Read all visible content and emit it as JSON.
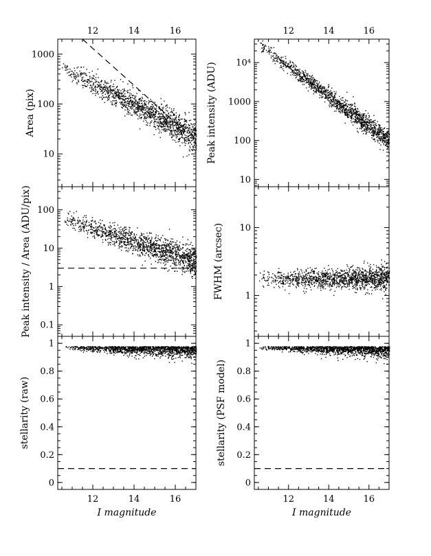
{
  "figure": {
    "top_axis_label": "",
    "colors": {
      "ink": "#000000",
      "background": "#ffffff"
    }
  },
  "chart_data": [
    {
      "id": "area",
      "type": "scatter",
      "xlabel": "",
      "ylabel": "Area (pix)",
      "xlim": [
        10.3,
        17.0
      ],
      "ylim": [
        2.2,
        2000
      ],
      "yscale": "log",
      "x_ticks": [
        "12",
        "14",
        "16"
      ],
      "x_ticks_position": "top",
      "y_ticks": [
        "10",
        "100",
        "1000"
      ],
      "trend": {
        "x_start": 10.5,
        "x_end": 17.0,
        "y_start": 560,
        "y_end": 22,
        "scatter_dex": 0.08,
        "n_points": 1400
      },
      "reference_lines": [
        {
          "style": "dashed",
          "x": [
            11.5,
            16.5
          ],
          "y": [
            2000,
            28
          ]
        }
      ]
    },
    {
      "id": "peak",
      "type": "scatter",
      "xlabel": "",
      "ylabel": "Peak intensity (ADU)",
      "xlim": [
        10.3,
        17.0
      ],
      "ylim": [
        6.5,
        40000
      ],
      "yscale": "log",
      "x_ticks": [
        "12",
        "14",
        "16"
      ],
      "x_ticks_position": "top",
      "y_ticks": [
        "10",
        "100",
        "1000",
        "10⁴"
      ],
      "trend": {
        "x_start": 10.5,
        "x_end": 17.0,
        "y_start": 30000,
        "y_end": 100,
        "scatter_dex": 0.07,
        "n_points": 1400
      }
    },
    {
      "id": "peak_area",
      "type": "scatter",
      "xlabel": "",
      "ylabel": "Peak intensity / Area (ADU/pix)",
      "xlim": [
        10.3,
        17.0
      ],
      "ylim": [
        0.05,
        400
      ],
      "yscale": "log",
      "x_ticks": [],
      "y_ticks": [
        "0.1",
        "1",
        "10",
        "100"
      ],
      "trend": {
        "x_start": 10.5,
        "x_end": 17.0,
        "y_start": 60,
        "y_end": 4.5,
        "scatter_dex": 0.1,
        "n_points": 1400
      },
      "reference_lines": [
        {
          "style": "dashed",
          "y": 3
        }
      ]
    },
    {
      "id": "fwhm",
      "type": "scatter",
      "xlabel": "",
      "ylabel": "FWHM (arcsec)",
      "xlim": [
        10.3,
        17.0
      ],
      "ylim": [
        0.25,
        40
      ],
      "yscale": "log",
      "x_ticks": [],
      "y_ticks": [
        "1",
        "10"
      ],
      "trend": {
        "x_start": 10.5,
        "x_end": 17.0,
        "y_start": 1.8,
        "y_end": 1.8,
        "scatter_dex": 0.05,
        "n_points": 1400
      }
    },
    {
      "id": "stellarity_raw",
      "type": "scatter",
      "xlabel": "I magnitude",
      "ylabel": "stellarity (raw)",
      "xlim": [
        10.3,
        17.0
      ],
      "ylim": [
        -0.05,
        1.05
      ],
      "yscale": "linear",
      "x_ticks": [
        "12",
        "14",
        "16"
      ],
      "x_ticks_position": "bottom",
      "y_ticks": [
        "0",
        "0.2",
        "0.4",
        "0.6",
        "0.8",
        "1"
      ],
      "trend": {
        "x_start": 10.5,
        "x_end": 17.0,
        "y_start": 0.98,
        "y_end": 0.98,
        "scatter_dex": 0.01,
        "n_points": 1400
      },
      "reference_lines": [
        {
          "style": "dashed",
          "y": 0.1
        }
      ]
    },
    {
      "id": "stellarity_psf",
      "type": "scatter",
      "xlabel": "I magnitude",
      "ylabel": "stellarity (PSF model)",
      "xlim": [
        10.3,
        17.0
      ],
      "ylim": [
        -0.05,
        1.05
      ],
      "yscale": "linear",
      "x_ticks": [
        "12",
        "14",
        "16"
      ],
      "x_ticks_position": "bottom",
      "y_ticks": [
        "0",
        "0.2",
        "0.4",
        "0.6",
        "0.8",
        "1"
      ],
      "trend": {
        "x_start": 10.5,
        "x_end": 17.0,
        "y_start": 0.98,
        "y_end": 0.98,
        "scatter_dex": 0.01,
        "n_points": 1400
      },
      "reference_lines": [
        {
          "style": "dashed",
          "y": 0.1
        }
      ]
    }
  ]
}
